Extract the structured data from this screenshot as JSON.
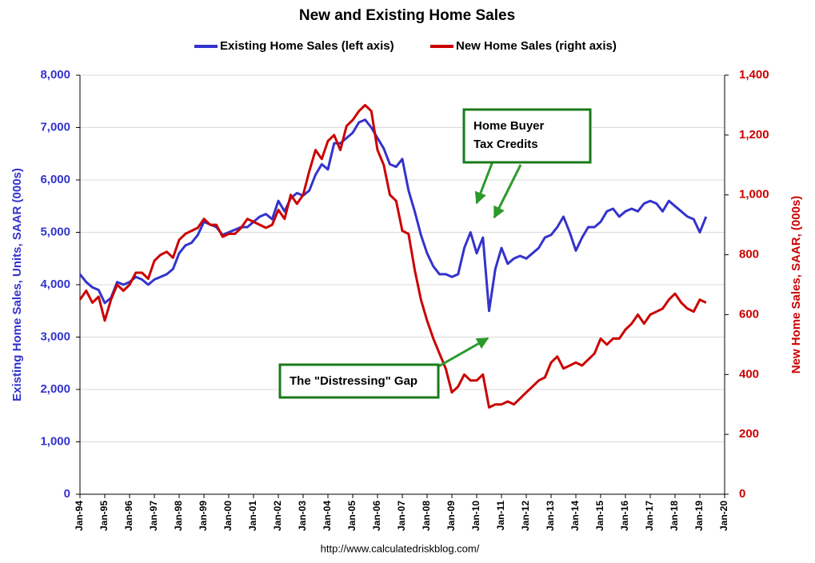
{
  "chart_data": {
    "type": "line",
    "title": "New and Existing Home Sales",
    "y_label": "Existing Home Sales, Units, SAAR (000s)",
    "y2_label": "New Home Sales, SAAR, (000s)",
    "source": "http://www.calculatedriskblog.com/",
    "annotations": [
      {
        "lines": [
          "Home Buyer",
          "Tax Credits"
        ]
      },
      {
        "lines": [
          "The \"Distressing\" Gap"
        ]
      }
    ],
    "x": [
      "1994-01",
      "1994-04",
      "1994-07",
      "1994-10",
      "1995-01",
      "1995-04",
      "1995-07",
      "1995-10",
      "1996-01",
      "1996-04",
      "1996-07",
      "1996-10",
      "1997-01",
      "1997-04",
      "1997-07",
      "1997-10",
      "1998-01",
      "1998-04",
      "1998-07",
      "1998-10",
      "1999-01",
      "1999-04",
      "1999-07",
      "1999-10",
      "2000-01",
      "2000-04",
      "2000-07",
      "2000-10",
      "2001-01",
      "2001-04",
      "2001-07",
      "2001-10",
      "2002-01",
      "2002-04",
      "2002-07",
      "2002-10",
      "2003-01",
      "2003-04",
      "2003-07",
      "2003-10",
      "2004-01",
      "2004-04",
      "2004-07",
      "2004-10",
      "2005-01",
      "2005-04",
      "2005-07",
      "2005-10",
      "2006-01",
      "2006-04",
      "2006-07",
      "2006-10",
      "2007-01",
      "2007-04",
      "2007-07",
      "2007-10",
      "2008-01",
      "2008-04",
      "2008-07",
      "2008-10",
      "2009-01",
      "2009-04",
      "2009-07",
      "2009-10",
      "2010-01",
      "2010-04",
      "2010-07",
      "2010-10",
      "2011-01",
      "2011-04",
      "2011-07",
      "2011-10",
      "2012-01",
      "2012-04",
      "2012-07",
      "2012-10",
      "2013-01",
      "2013-04",
      "2013-07",
      "2013-10",
      "2014-01",
      "2014-04",
      "2014-07",
      "2014-10",
      "2015-01",
      "2015-04",
      "2015-07",
      "2015-10",
      "2016-01",
      "2016-04",
      "2016-07",
      "2016-10",
      "2017-01",
      "2017-04",
      "2017-07",
      "2017-10",
      "2018-01",
      "2018-04",
      "2018-07",
      "2018-10",
      "2019-01",
      "2019-04"
    ],
    "series": [
      {
        "name": "Existing Home Sales (left axis)",
        "color": "#3333cc",
        "axis": "y",
        "values": [
          4200,
          4050,
          3950,
          3900,
          3650,
          3750,
          4050,
          4000,
          4050,
          4150,
          4100,
          4000,
          4100,
          4150,
          4200,
          4300,
          4600,
          4750,
          4800,
          4950,
          5200,
          5150,
          5100,
          4950,
          5000,
          5050,
          5100,
          5100,
          5200,
          5300,
          5350,
          5250,
          5600,
          5400,
          5650,
          5750,
          5700,
          5800,
          6100,
          6300,
          6200,
          6700,
          6700,
          6800,
          6900,
          7100,
          7150,
          7000,
          6800,
          6600,
          6300,
          6250,
          6400,
          5800,
          5400,
          4950,
          4600,
          4350,
          4200,
          4200,
          4150,
          4200,
          4700,
          5000,
          4600,
          4900,
          3500,
          4300,
          4700,
          4400,
          4500,
          4550,
          4500,
          4600,
          4700,
          4900,
          4950,
          5100,
          5300,
          5000,
          4650,
          4900,
          5100,
          5100,
          5200,
          5400,
          5450,
          5300,
          5400,
          5450,
          5400,
          5550,
          5600,
          5550,
          5400,
          5600,
          5500,
          5400,
          5300,
          5250,
          5000,
          5300
        ]
      },
      {
        "name": "New Home Sales (right axis)",
        "color": "#cc0000",
        "axis": "y2",
        "values": [
          650,
          680,
          640,
          660,
          580,
          650,
          700,
          680,
          700,
          740,
          740,
          720,
          780,
          800,
          810,
          790,
          850,
          870,
          880,
          890,
          920,
          900,
          900,
          860,
          870,
          870,
          890,
          920,
          910,
          900,
          890,
          900,
          950,
          920,
          1000,
          970,
          1000,
          1080,
          1150,
          1120,
          1180,
          1200,
          1150,
          1230,
          1250,
          1280,
          1300,
          1280,
          1150,
          1100,
          1000,
          980,
          880,
          870,
          750,
          650,
          580,
          520,
          470,
          420,
          340,
          360,
          400,
          380,
          380,
          400,
          290,
          300,
          300,
          310,
          300,
          320,
          340,
          360,
          380,
          390,
          440,
          460,
          420,
          430,
          440,
          430,
          450,
          470,
          520,
          500,
          520,
          520,
          550,
          570,
          600,
          570,
          600,
          610,
          620,
          650,
          670,
          640,
          620,
          610,
          650,
          640
        ]
      }
    ],
    "xlim": [
      "1994-01",
      "2020-01"
    ],
    "xticks": [
      {
        "value": "1994-01",
        "label": "Jan-94"
      },
      {
        "value": "1995-01",
        "label": "Jan-95"
      },
      {
        "value": "1996-01",
        "label": "Jan-96"
      },
      {
        "value": "1997-01",
        "label": "Jan-97"
      },
      {
        "value": "1998-01",
        "label": "Jan-98"
      },
      {
        "value": "1999-01",
        "label": "Jan-99"
      },
      {
        "value": "2000-01",
        "label": "Jan-00"
      },
      {
        "value": "2001-01",
        "label": "Jan-01"
      },
      {
        "value": "2002-01",
        "label": "Jan-02"
      },
      {
        "value": "2003-01",
        "label": "Jan-03"
      },
      {
        "value": "2004-01",
        "label": "Jan-04"
      },
      {
        "value": "2005-01",
        "label": "Jan-05"
      },
      {
        "value": "2006-01",
        "label": "Jan-06"
      },
      {
        "value": "2007-01",
        "label": "Jan-07"
      },
      {
        "value": "2008-01",
        "label": "Jan-08"
      },
      {
        "value": "2009-01",
        "label": "Jan-09"
      },
      {
        "value": "2010-01",
        "label": "Jan-10"
      },
      {
        "value": "2011-01",
        "label": "Jan-11"
      },
      {
        "value": "2012-01",
        "label": "Jan-12"
      },
      {
        "value": "2013-01",
        "label": "Jan-13"
      },
      {
        "value": "2014-01",
        "label": "Jan-14"
      },
      {
        "value": "2015-01",
        "label": "Jan-15"
      },
      {
        "value": "2016-01",
        "label": "Jan-16"
      },
      {
        "value": "2017-01",
        "label": "Jan-17"
      },
      {
        "value": "2018-01",
        "label": "Jan-18"
      },
      {
        "value": "2019-01",
        "label": "Jan-19"
      },
      {
        "value": "2020-01",
        "label": "Jan-20"
      }
    ],
    "ylim": [
      0,
      8000
    ],
    "yticks": [
      0,
      {
        "value": 1000,
        "label": "1,000"
      },
      {
        "value": 2000,
        "label": "2,000"
      },
      {
        "value": 3000,
        "label": "3,000"
      },
      {
        "value": 4000,
        "label": "4,000"
      },
      {
        "value": 5000,
        "label": "5,000"
      },
      {
        "value": 6000,
        "label": "6,000"
      },
      {
        "value": 7000,
        "label": "7,000"
      },
      {
        "value": 8000,
        "label": "8,000"
      }
    ],
    "y2lim": [
      0,
      1400
    ],
    "y2ticks": [
      0,
      200,
      400,
      600,
      800,
      {
        "value": 1000,
        "label": "1,000"
      },
      {
        "value": 1200,
        "label": "1,200"
      },
      {
        "value": 1400,
        "label": "1,400"
      }
    ],
    "grid": true,
    "legend": "top"
  }
}
